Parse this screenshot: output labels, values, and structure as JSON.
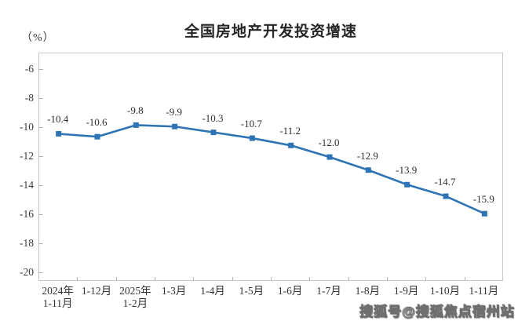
{
  "page": {
    "background": "#ffffff"
  },
  "chart_data": {
    "type": "line",
    "title": "全国房地产开发投资增速",
    "ylabel": "（%）",
    "categories": [
      "2024年\n1-11月",
      "1-12月",
      "2025年\n1-2月",
      "1-3月",
      "1-4月",
      "1-5月",
      "1-6月",
      "1-7月",
      "1-8月",
      "1-9月",
      "1-10月",
      "1-11月"
    ],
    "values": [
      -10.4,
      -10.6,
      -9.8,
      -9.9,
      -10.3,
      -10.7,
      -11.2,
      -12.0,
      -12.9,
      -13.9,
      -14.7,
      -15.9
    ],
    "data_labels": [
      "-10.4",
      "-10.6",
      "-9.8",
      "-9.9",
      "-10.3",
      "-10.7",
      "-11.2",
      "-12.0",
      "-12.9",
      "-13.9",
      "-14.7",
      "-15.9"
    ],
    "yticks": [
      -6,
      -8,
      -10,
      -12,
      -14,
      -16,
      -18,
      -20
    ],
    "ylim": [
      -20.59,
      -4.86
    ],
    "grid": false,
    "legend": "none",
    "line_color": "#2E74B5",
    "marker": "square",
    "marker_size": 7,
    "axis_color": "#c6c6c6",
    "tick_color": "#b3b3b3",
    "label_color": "#3a3a3a"
  },
  "watermark": {
    "text": "搜狐号@搜狐焦点宿州站"
  }
}
